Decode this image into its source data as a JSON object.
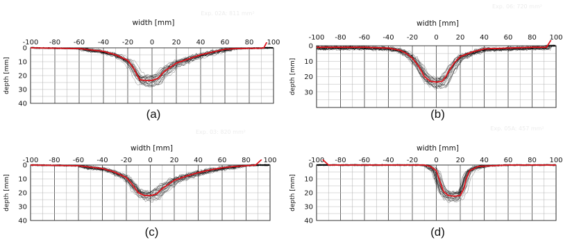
{
  "chart_data": [
    {
      "type": "line",
      "panel": "(a)",
      "exp_label": "Exp. 02A: 811 mm²",
      "xlabel": "width [mm]",
      "ylabel": "depth [mm]",
      "xlim": [
        -100,
        100
      ],
      "ylim": [
        40,
        0
      ],
      "xticks": [
        -100,
        -80,
        -60,
        -40,
        -20,
        0,
        20,
        40,
        60,
        80,
        100
      ],
      "yticks": [
        0,
        10,
        20,
        30,
        40
      ],
      "grid": true,
      "series": [
        {
          "color": "#e0141c",
          "x": [
            -100,
            -60,
            -40,
            -30,
            -20,
            -15,
            -12,
            -10,
            -5,
            0,
            5,
            10,
            20,
            30,
            40,
            50,
            60,
            70,
            80,
            88,
            92,
            95
          ],
          "y": [
            0,
            0.5,
            2.5,
            5,
            9,
            15,
            20,
            23,
            23.5,
            23.5,
            22,
            17,
            11,
            8,
            5,
            3,
            1,
            0.5,
            0.3,
            0.3,
            0,
            -5
          ]
        }
      ]
    },
    {
      "type": "line",
      "panel": "(b)",
      "exp_label": "Exp. 06: 720 mm²",
      "xlabel": "width [mm]",
      "ylabel": "depth [mm]",
      "xlim": [
        -100,
        100
      ],
      "ylim": [
        40,
        0
      ],
      "xticks": [
        -100,
        -80,
        -60,
        -40,
        -20,
        0,
        20,
        40,
        60,
        80,
        100
      ],
      "yticks": [
        0,
        10,
        20,
        30
      ],
      "grid": true,
      "series": [
        {
          "color": "#e0141c",
          "x": [
            -100,
            -60,
            -40,
            -30,
            -25,
            -20,
            -15,
            -12,
            -10,
            -5,
            0,
            5,
            8,
            10,
            15,
            20,
            30,
            40,
            60,
            80,
            92,
            96
          ],
          "y": [
            1,
            1,
            1.5,
            3,
            5,
            8,
            13,
            17,
            20,
            23,
            23.5,
            23,
            20,
            17,
            11,
            7,
            4,
            2,
            1.5,
            1,
            1,
            -4
          ]
        }
      ]
    },
    {
      "type": "line",
      "panel": "(c)",
      "exp_label": "Exp. 03: 820 mm²",
      "xlabel": "width [mm]",
      "ylabel": "depth [mm]",
      "xlim": [
        -100,
        100
      ],
      "ylim": [
        40,
        0
      ],
      "xticks": [
        -100,
        -80,
        -60,
        -40,
        -20,
        0,
        20,
        40,
        60,
        80,
        100
      ],
      "yticks": [
        0,
        10,
        20,
        30,
        40
      ],
      "grid": true,
      "series": [
        {
          "color": "#e0141c",
          "x": [
            -100,
            -60,
            -40,
            -30,
            -20,
            -15,
            -10,
            -5,
            0,
            5,
            10,
            20,
            30,
            40,
            50,
            60,
            70,
            80,
            88,
            93
          ],
          "y": [
            0,
            0.5,
            2.5,
            5,
            9,
            14,
            20,
            22,
            22,
            21,
            17,
            11,
            8,
            5.5,
            3.5,
            2,
            1,
            0.5,
            0,
            -4
          ]
        }
      ]
    },
    {
      "type": "line",
      "panel": "(d)",
      "exp_label": "Exp. 05A: 457 mm²",
      "xlabel": "width [mm]",
      "ylabel": "depth [mm]",
      "xlim": [
        -100,
        100
      ],
      "ylim": [
        40,
        0
      ],
      "xticks": [
        -100,
        -80,
        -60,
        -40,
        -20,
        0,
        20,
        40,
        60,
        80,
        100
      ],
      "yticks": [
        0,
        10,
        20,
        30,
        40
      ],
      "grid": true,
      "series": [
        {
          "color": "#e0141c",
          "x": [
            -95,
            -90,
            -60,
            -20,
            -10,
            -5,
            0,
            3,
            6,
            10,
            15,
            20,
            23,
            25,
            28,
            35,
            60,
            100
          ],
          "y": [
            -4,
            0,
            0,
            0,
            0,
            1,
            4,
            12,
            19,
            22,
            22.5,
            22,
            17,
            10,
            4,
            1,
            0,
            0
          ]
        }
      ]
    }
  ]
}
